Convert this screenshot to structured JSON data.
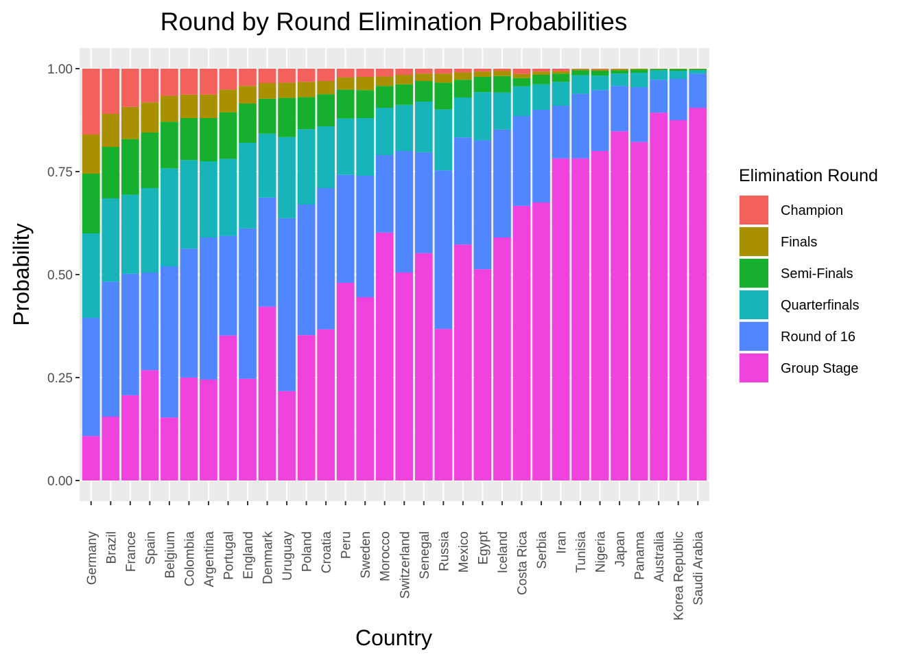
{
  "chart_data": {
    "type": "bar",
    "stacked": true,
    "title": "Round by Round Elimination Probabilities",
    "xlabel": "Country",
    "ylabel": "Probability",
    "ylim": [
      0,
      1
    ],
    "yticks": [
      "0.00",
      "0.25",
      "0.50",
      "0.75",
      "1.00"
    ],
    "grid": true,
    "legend": {
      "title": "Elimination Round",
      "position": "right"
    },
    "categories": [
      "Germany",
      "Brazil",
      "France",
      "Spain",
      "Belgium",
      "Colombia",
      "Argentina",
      "Portugal",
      "England",
      "Denmark",
      "Uruguay",
      "Poland",
      "Croatia",
      "Peru",
      "Sweden",
      "Morocco",
      "Switzerland",
      "Senegal",
      "Russia",
      "Mexico",
      "Egypt",
      "Iceland",
      "Costa Rica",
      "Serbia",
      "Iran",
      "Tunisia",
      "Nigeria",
      "Japan",
      "Panama",
      "Australia",
      "Korea Republic",
      "Saudi Arabia"
    ],
    "series": [
      {
        "name": "Group Stage",
        "color": "#F042DC",
        "values": [
          0.108,
          0.155,
          0.207,
          0.268,
          0.153,
          0.25,
          0.245,
          0.352,
          0.247,
          0.422,
          0.217,
          0.353,
          0.367,
          0.48,
          0.445,
          0.602,
          0.505,
          0.552,
          0.368,
          0.573,
          0.513,
          0.59,
          0.667,
          0.675,
          0.782,
          0.782,
          0.8,
          0.848,
          0.822,
          0.893,
          0.875,
          0.905
        ]
      },
      {
        "name": "Round of 16",
        "color": "#5086FF",
        "values": [
          0.287,
          0.328,
          0.295,
          0.237,
          0.367,
          0.313,
          0.345,
          0.242,
          0.365,
          0.265,
          0.42,
          0.317,
          0.343,
          0.262,
          0.295,
          0.188,
          0.295,
          0.245,
          0.385,
          0.26,
          0.313,
          0.262,
          0.218,
          0.225,
          0.128,
          0.157,
          0.148,
          0.11,
          0.133,
          0.08,
          0.1,
          0.083
        ]
      },
      {
        "name": "Quarterfinals",
        "color": "#17B5BA",
        "values": [
          0.205,
          0.202,
          0.192,
          0.205,
          0.238,
          0.215,
          0.185,
          0.187,
          0.208,
          0.155,
          0.197,
          0.183,
          0.15,
          0.137,
          0.14,
          0.115,
          0.112,
          0.123,
          0.148,
          0.097,
          0.117,
          0.09,
          0.072,
          0.062,
          0.058,
          0.045,
          0.035,
          0.03,
          0.035,
          0.023,
          0.02,
          0.008
        ]
      },
      {
        "name": "Semi-Finals",
        "color": "#17B02E",
        "values": [
          0.145,
          0.125,
          0.135,
          0.135,
          0.113,
          0.102,
          0.105,
          0.113,
          0.095,
          0.085,
          0.095,
          0.078,
          0.078,
          0.07,
          0.068,
          0.053,
          0.05,
          0.05,
          0.065,
          0.043,
          0.037,
          0.04,
          0.02,
          0.023,
          0.02,
          0.012,
          0.012,
          0.008,
          0.008,
          0.003,
          0.004,
          0.003
        ]
      },
      {
        "name": "Finals",
        "color": "#A89000",
        "values": [
          0.095,
          0.08,
          0.078,
          0.073,
          0.063,
          0.057,
          0.057,
          0.055,
          0.043,
          0.038,
          0.037,
          0.037,
          0.032,
          0.03,
          0.032,
          0.023,
          0.023,
          0.018,
          0.022,
          0.018,
          0.013,
          0.013,
          0.01,
          0.008,
          0.006,
          0.003,
          0.003,
          0.003,
          0.002,
          0.001,
          0.001,
          0.001
        ]
      },
      {
        "name": "Champion",
        "color": "#F3615D",
        "values": [
          0.16,
          0.11,
          0.093,
          0.082,
          0.066,
          0.063,
          0.063,
          0.051,
          0.042,
          0.035,
          0.034,
          0.032,
          0.03,
          0.021,
          0.02,
          0.019,
          0.015,
          0.012,
          0.012,
          0.009,
          0.007,
          0.005,
          0.013,
          0.007,
          0.006,
          0.001,
          0.002,
          0.001,
          0.0,
          0.0,
          0.0,
          0.0
        ]
      }
    ],
    "legend_order": [
      "Champion",
      "Finals",
      "Semi-Finals",
      "Quarterfinals",
      "Round of 16",
      "Group Stage"
    ]
  }
}
